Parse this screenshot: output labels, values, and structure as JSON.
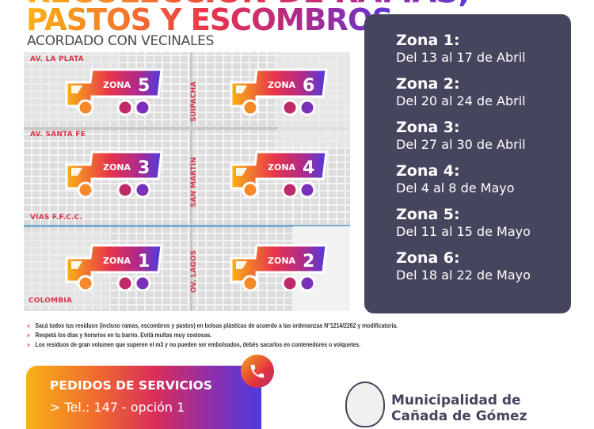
{
  "title": {
    "line1": "RECOLECCIÓN DE RAMAS,",
    "line2": "PASTOS Y ESCOMBROS",
    "subtitle": "ACORDADO CON VECINALES"
  },
  "map": {
    "streets": {
      "la_plata": "AV. LA PLATA",
      "santa_fe": "AV. SANTA FE",
      "vias": "VÍAS F.F.C.C.",
      "colombia": "COLOMBIA",
      "suipacha": "SUIPACHA",
      "san_martin": "SAN MARTÍN",
      "lagos": "OV. LAGOS"
    },
    "zones": [
      {
        "label": "ZONA",
        "number": "5"
      },
      {
        "label": "ZONA",
        "number": "6"
      },
      {
        "label": "ZONA",
        "number": "3"
      },
      {
        "label": "ZONA",
        "number": "4"
      },
      {
        "label": "ZONA",
        "number": "1"
      },
      {
        "label": "ZONA",
        "number": "2"
      }
    ]
  },
  "schedule": [
    {
      "zone": "Zona 1:",
      "dates": "Del 13 al 17 de Abril"
    },
    {
      "zone": "Zona 2:",
      "dates": "Del 20 al 24 de Abril"
    },
    {
      "zone": "Zona 3:",
      "dates": "Del 27 al 30 de Abril"
    },
    {
      "zone": "Zona 4:",
      "dates": "Del 4 al 8 de Mayo"
    },
    {
      "zone": "Zona 5:",
      "dates": "Del 11 al 15 de Mayo"
    },
    {
      "zone": "Zona 6:",
      "dates": "Del 18 al 22 de Mayo"
    }
  ],
  "notes": [
    "Sacá todos tus residuos (incluso ramas, escombros y pastos) en bolsas plásticas de acuerdo a las ordenanzas N°1214/2262 y modificatoria.",
    "Respetá los días y horarios en tu barrio. Evitá multas muy costosas.",
    "Los residuos de gran volumen que superen el m3 y no pueden ser embolsados, debés sacarlos en contenedores o volquetes."
  ],
  "services": {
    "heading": "PEDIDOS DE SERVICIOS",
    "phone": "> Tel.: 147 - opción 1",
    "icon": "phone-icon"
  },
  "footer": {
    "line1": "Municipalidad de",
    "line2": "Cañada de Gómez"
  },
  "colors": {
    "panel": "#45455d",
    "gradient": [
      "#f9b214",
      "#e8344a",
      "#5b36d8"
    ],
    "accent": "#e63a3a"
  }
}
